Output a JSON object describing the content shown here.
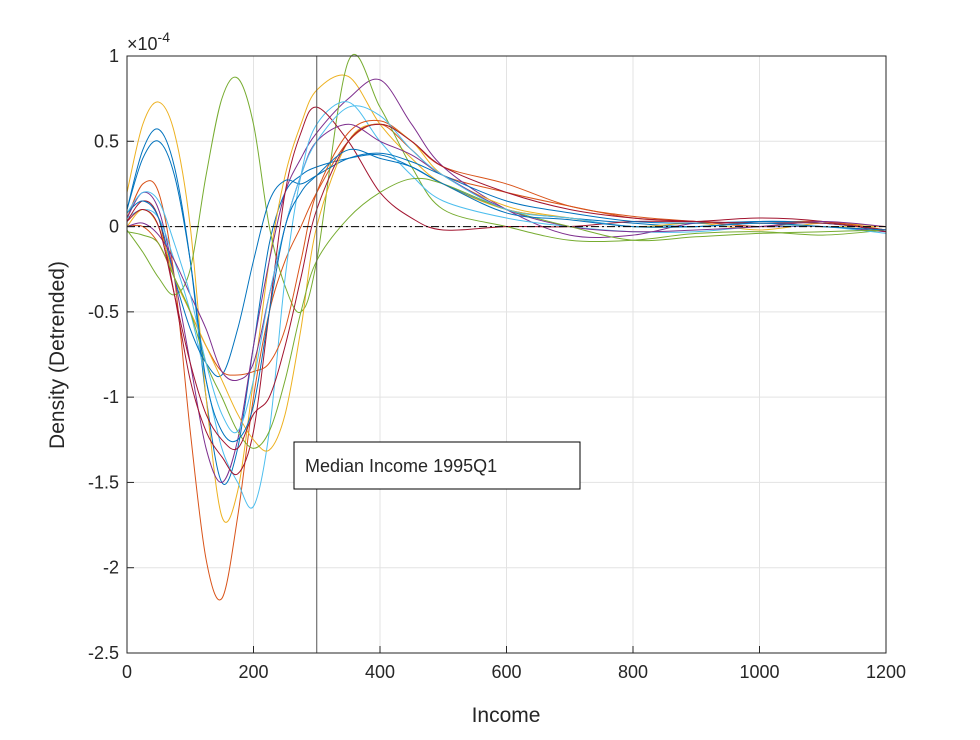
{
  "chart_data": {
    "type": "line",
    "title": "",
    "xlabel": "Income",
    "ylabel": "Density (Detrended)",
    "y_exponent_label": "×10^-4",
    "y_multiplier_base": "10",
    "y_multiplier_exp": "-4",
    "xlim": [
      0,
      1200
    ],
    "ylim": [
      -2.5,
      1
    ],
    "y_units": "x 1e-4",
    "grid": true,
    "x_ticks": [
      "0",
      "200",
      "400",
      "600",
      "800",
      "1000",
      "1200"
    ],
    "y_ticks": [
      "1",
      "0.5",
      "0",
      "-0.5",
      "-1",
      "-1.5",
      "-2",
      "-2.5"
    ],
    "x_tick_values": [
      0,
      200,
      400,
      600,
      800,
      1000,
      1200
    ],
    "y_tick_values": [
      1,
      0.5,
      0,
      -0.5,
      -1,
      -1.5,
      -2,
      -2.5
    ],
    "annotation": {
      "text": "Median Income 1995Q1",
      "x_value": 300
    },
    "reference_line": {
      "y_value": 0,
      "style": "dash-dot"
    },
    "colors": [
      "#0072BD",
      "#D95319",
      "#EDB120",
      "#7E2F8E",
      "#77AC30",
      "#4DBEEE",
      "#A2142F"
    ],
    "x": [
      0,
      25,
      50,
      75,
      100,
      125,
      150,
      175,
      200,
      225,
      250,
      275,
      300,
      350,
      400,
      450,
      500,
      600,
      700,
      800,
      900,
      1000,
      1100,
      1200
    ],
    "series": [
      {
        "color": "#0072BD",
        "values": [
          0.1,
          0.45,
          0.57,
          0.35,
          -0.2,
          -1.0,
          -1.5,
          -1.3,
          -0.7,
          -0.1,
          0.2,
          0.3,
          0.35,
          0.4,
          0.42,
          0.35,
          0.25,
          0.1,
          0.05,
          0.02,
          0,
          0.03,
          0.02,
          -0.02
        ]
      },
      {
        "color": "#D95319",
        "values": [
          0.05,
          0.25,
          0.2,
          -0.3,
          -1.2,
          -1.95,
          -2.18,
          -1.7,
          -1.0,
          -0.5,
          -0.2,
          0.0,
          0.2,
          0.5,
          0.6,
          0.45,
          0.3,
          0.2,
          0.12,
          0.05,
          0.03,
          0.02,
          0.03,
          -0.03
        ]
      },
      {
        "color": "#EDB120",
        "values": [
          0.2,
          0.6,
          0.73,
          0.55,
          0.0,
          -1.0,
          -1.7,
          -1.55,
          -0.9,
          -0.2,
          0.3,
          0.6,
          0.8,
          0.88,
          0.6,
          0.4,
          0.25,
          0.1,
          0.05,
          0.0,
          0.02,
          -0.02,
          0.02,
          0.0
        ]
      },
      {
        "color": "#7E2F8E",
        "values": [
          0.05,
          0.2,
          0.1,
          -0.3,
          -0.8,
          -1.3,
          -1.5,
          -1.25,
          -0.7,
          -0.2,
          0.2,
          0.4,
          0.55,
          0.75,
          0.86,
          0.6,
          0.35,
          0.1,
          -0.05,
          -0.05,
          0.02,
          0.0,
          0.0,
          -0.03
        ]
      },
      {
        "color": "#77AC30",
        "values": [
          -0.02,
          -0.15,
          -0.3,
          -0.4,
          -0.25,
          0.3,
          0.75,
          0.87,
          0.6,
          0.0,
          -0.35,
          -0.5,
          -0.2,
          0.97,
          0.7,
          0.35,
          0.1,
          0.0,
          -0.08,
          -0.08,
          -0.04,
          -0.03,
          -0.05,
          -0.02
        ]
      },
      {
        "color": "#4DBEEE",
        "values": [
          0.05,
          0.1,
          0.05,
          -0.2,
          -0.5,
          -0.9,
          -1.3,
          -1.5,
          -1.64,
          -1.2,
          -0.3,
          0.3,
          0.6,
          0.73,
          0.5,
          0.3,
          0.15,
          0.05,
          0.0,
          -0.03,
          -0.03,
          0.0,
          0.0,
          -0.04
        ]
      },
      {
        "color": "#A2142F",
        "values": [
          0.03,
          0.15,
          0.05,
          -0.4,
          -0.9,
          -1.2,
          -1.35,
          -1.45,
          -1.2,
          -0.5,
          0.2,
          0.55,
          0.7,
          0.5,
          0.2,
          0.05,
          -0.02,
          0.0,
          0.0,
          0.03,
          0.03,
          0.05,
          0.03,
          -0.03
        ]
      },
      {
        "color": "#0072BD",
        "values": [
          0.08,
          0.15,
          0.05,
          -0.3,
          -0.6,
          -0.8,
          -0.87,
          -0.6,
          -0.2,
          0.15,
          0.27,
          0.25,
          0.3,
          0.4,
          0.43,
          0.38,
          0.3,
          0.15,
          0.08,
          0.03,
          0.02,
          0.03,
          0.02,
          -0.02
        ]
      },
      {
        "color": "#D95319",
        "values": [
          0.0,
          0.0,
          -0.1,
          -0.3,
          -0.5,
          -0.7,
          -0.85,
          -0.87,
          -0.85,
          -0.8,
          -0.6,
          -0.2,
          0.2,
          0.55,
          0.62,
          0.5,
          0.35,
          0.25,
          0.12,
          0.06,
          0.03,
          0.0,
          0.03,
          -0.02
        ]
      },
      {
        "color": "#EDB120",
        "values": [
          0.0,
          0.1,
          0.0,
          -0.3,
          -0.5,
          -0.7,
          -0.9,
          -1.1,
          -1.25,
          -1.31,
          -1.1,
          -0.6,
          0.0,
          0.5,
          0.6,
          0.5,
          0.3,
          0.12,
          0.05,
          0.0,
          0.0,
          0.02,
          0.0,
          0.0
        ]
      },
      {
        "color": "#7E2F8E",
        "values": [
          0.0,
          0.02,
          -0.05,
          -0.2,
          -0.4,
          -0.6,
          -0.85,
          -0.9,
          -0.8,
          -0.4,
          0.0,
          0.3,
          0.5,
          0.6,
          0.5,
          0.42,
          0.3,
          0.1,
          0.0,
          -0.03,
          -0.02,
          0.0,
          0.03,
          0.0
        ]
      },
      {
        "color": "#77AC30",
        "values": [
          -0.03,
          -0.05,
          -0.1,
          -0.3,
          -0.5,
          -0.8,
          -1.0,
          -1.2,
          -1.3,
          -1.2,
          -0.9,
          -0.5,
          -0.2,
          0.05,
          0.2,
          0.28,
          0.25,
          0.1,
          0.0,
          -0.08,
          -0.06,
          -0.04,
          -0.03,
          -0.02
        ]
      },
      {
        "color": "#4DBEEE",
        "values": [
          0.08,
          0.2,
          0.15,
          -0.1,
          -0.4,
          -0.8,
          -1.1,
          -1.2,
          -0.9,
          -0.4,
          0.0,
          0.3,
          0.5,
          0.7,
          0.65,
          0.45,
          0.3,
          0.1,
          0.05,
          0.0,
          0.0,
          0.02,
          0.02,
          -0.02
        ]
      },
      {
        "color": "#A2142F",
        "values": [
          0.03,
          0.1,
          0.0,
          -0.4,
          -0.8,
          -1.1,
          -1.25,
          -1.3,
          -1.1,
          -1.0,
          -0.7,
          -0.3,
          0.1,
          0.5,
          0.6,
          0.5,
          0.35,
          0.2,
          0.1,
          0.05,
          0.03,
          0.02,
          0.02,
          -0.02
        ]
      },
      {
        "color": "#0072BD",
        "values": [
          0.1,
          0.4,
          0.5,
          0.3,
          -0.2,
          -0.9,
          -1.2,
          -1.25,
          -1.05,
          -0.5,
          0.0,
          0.2,
          0.3,
          0.45,
          0.4,
          0.35,
          0.25,
          0.08,
          0.04,
          0.0,
          0.0,
          0.02,
          0.0,
          -0.02
        ]
      }
    ]
  }
}
